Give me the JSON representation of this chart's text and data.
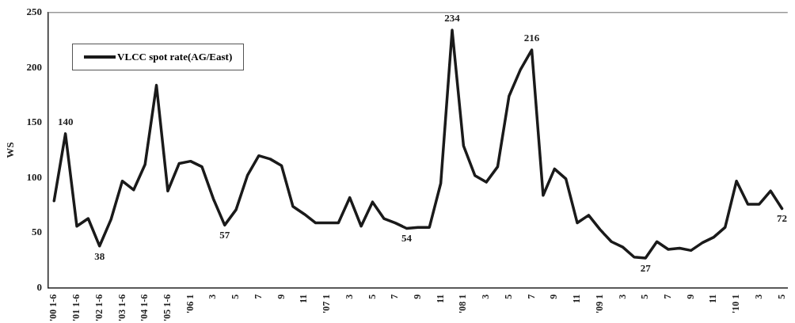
{
  "chart_data": {
    "type": "line",
    "ylabel": "WS",
    "categories": [
      "'00 1-6",
      null,
      "'01 1-6",
      null,
      "'02 1-6",
      null,
      "'03 1-6",
      null,
      "'04 1-6",
      null,
      "'05 1-6",
      null,
      "'06 1",
      null,
      "3",
      null,
      "5",
      null,
      "7",
      null,
      "9",
      null,
      "11",
      null,
      "'07 1",
      null,
      "3",
      null,
      "5",
      null,
      "7",
      null,
      "9",
      null,
      "11",
      null,
      "'08 1",
      null,
      "3",
      null,
      "5",
      null,
      "7",
      null,
      "9",
      null,
      "11",
      null,
      "'09 1",
      null,
      "3",
      null,
      "5",
      null,
      "7",
      null,
      "9",
      null,
      "11",
      null,
      "'10 1",
      null,
      "3",
      null,
      "5"
    ],
    "series": [
      {
        "name": "VLCC spot rate(AG/East)",
        "color": "#1a1a1a",
        "values": [
          79,
          140,
          56,
          63,
          38,
          62,
          97,
          89,
          112,
          184,
          88,
          113,
          115,
          110,
          81,
          57,
          71,
          102,
          120,
          117,
          111,
          74,
          67,
          59,
          59,
          59,
          82,
          56,
          78,
          63,
          59,
          54,
          55,
          55,
          95,
          234,
          129,
          102,
          96,
          110,
          174,
          198,
          216,
          84,
          108,
          99,
          59,
          66,
          53,
          42,
          37,
          28,
          27,
          42,
          35,
          36,
          34,
          41,
          46,
          55,
          97,
          76,
          76,
          88,
          72
        ],
        "value_labels": [
          null,
          "140",
          null,
          null,
          "38",
          null,
          null,
          null,
          null,
          null,
          null,
          null,
          null,
          null,
          null,
          "57",
          null,
          null,
          null,
          null,
          null,
          null,
          null,
          null,
          null,
          null,
          null,
          null,
          null,
          null,
          null,
          "54",
          null,
          null,
          null,
          "234",
          null,
          null,
          null,
          null,
          null,
          null,
          "216",
          null,
          null,
          null,
          null,
          null,
          null,
          null,
          null,
          null,
          "27",
          null,
          null,
          null,
          null,
          null,
          null,
          null,
          null,
          null,
          null,
          null,
          "72"
        ]
      }
    ],
    "ylim": [
      0,
      250
    ],
    "yticks": [
      0,
      50,
      100,
      150,
      200,
      250
    ],
    "grid": false,
    "legend": "top left",
    "marker": "none",
    "line_style": "solid"
  }
}
